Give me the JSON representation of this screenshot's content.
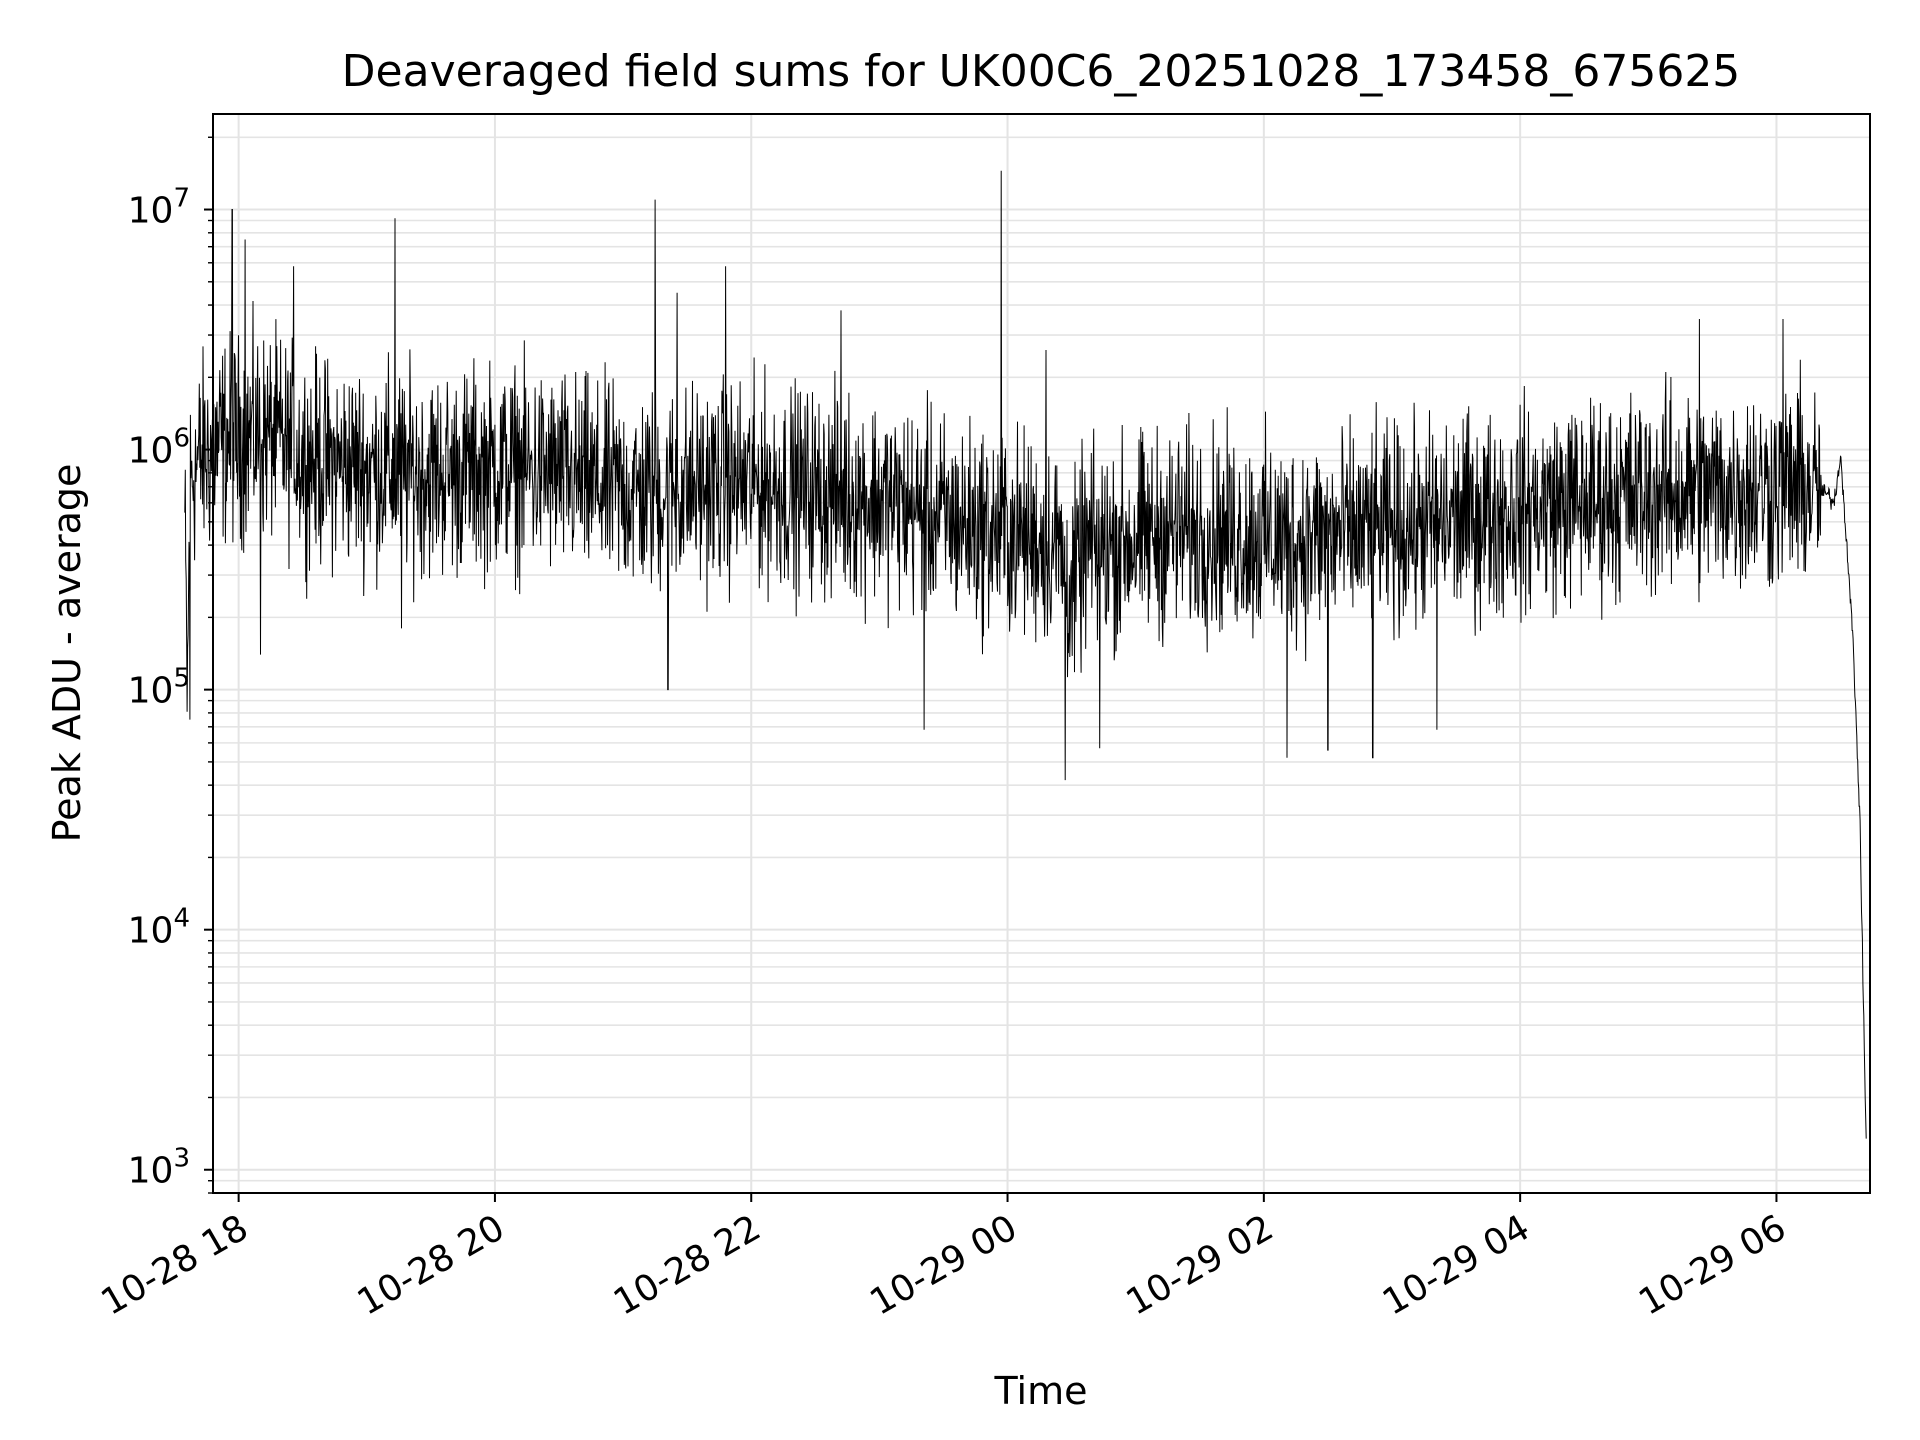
{
  "chart_data": {
    "type": "line",
    "title": "Deaveraged field sums for UK00C6_20251028_173458_675625",
    "xlabel": "Time",
    "ylabel": "Peak ADU - average",
    "yscale": "log",
    "ylim": [
      800,
      25000000
    ],
    "xlim_hours": [
      -0.2,
      12.73
    ],
    "x_ticks": [
      {
        "hours": 0,
        "label": "10-28 18"
      },
      {
        "hours": 2,
        "label": "10-28 20"
      },
      {
        "hours": 4,
        "label": "10-28 22"
      },
      {
        "hours": 6,
        "label": "10-29 00"
      },
      {
        "hours": 8,
        "label": "10-29 02"
      },
      {
        "hours": 10,
        "label": "10-29 04"
      },
      {
        "hours": 12,
        "label": "10-29 06"
      }
    ],
    "y_ticks": [
      {
        "value": 1000,
        "base": "10",
        "exp": "3"
      },
      {
        "value": 10000,
        "base": "10",
        "exp": "4"
      },
      {
        "value": 100000,
        "base": "10",
        "exp": "5"
      },
      {
        "value": 1000000,
        "base": "10",
        "exp": "6"
      },
      {
        "value": 10000000,
        "base": "10",
        "exp": "7"
      }
    ],
    "grid": true,
    "series": [
      {
        "name": "field sums",
        "color": "#000000",
        "x_hours": [
          -0.42,
          -0.4,
          -0.38,
          -0.36,
          -0.34,
          -0.3,
          -0.25,
          -0.2,
          -0.15,
          -0.1,
          -0.05,
          0.0,
          0.1,
          0.2,
          0.3,
          0.4,
          0.5,
          0.6,
          0.7,
          0.8,
          0.9,
          1.0,
          1.2,
          1.4,
          1.6,
          1.8,
          2.0,
          2.2,
          2.4,
          2.6,
          2.8,
          3.0,
          3.2,
          3.4,
          3.6,
          3.8,
          4.0,
          4.2,
          4.4,
          4.6,
          4.8,
          5.0,
          5.2,
          5.4,
          5.6,
          5.8,
          6.0,
          6.2,
          6.4,
          6.5,
          6.6,
          6.8,
          7.0,
          7.2,
          7.4,
          7.6,
          7.8,
          8.0,
          8.2,
          8.4,
          8.6,
          8.8,
          9.0,
          9.2,
          9.4,
          9.6,
          9.8,
          10.0,
          10.2,
          10.4,
          10.6,
          10.8,
          11.0,
          11.2,
          11.4,
          11.6,
          11.8,
          12.0,
          12.1,
          12.2,
          12.3,
          12.4,
          12.45,
          12.5,
          12.55,
          12.6,
          12.65,
          12.7
        ],
        "median": [
          500000,
          90000,
          700000,
          800000,
          850000,
          900000,
          950000,
          1000000,
          1050000,
          1100000,
          1100000,
          1100000,
          1150000,
          1150000,
          1100000,
          1000000,
          950000,
          900000,
          880000,
          870000,
          860000,
          840000,
          820000,
          800000,
          800000,
          820000,
          840000,
          830000,
          800000,
          760000,
          700000,
          680000,
          650000,
          680000,
          700000,
          720000,
          720000,
          700000,
          680000,
          650000,
          640000,
          620000,
          580000,
          530000,
          500000,
          470000,
          450000,
          430000,
          400000,
          250000,
          380000,
          400000,
          420000,
          450000,
          460000,
          450000,
          440000,
          430000,
          420000,
          430000,
          440000,
          450000,
          460000,
          480000,
          500000,
          520000,
          540000,
          560000,
          580000,
          600000,
          620000,
          640000,
          650000,
          660000,
          670000,
          680000,
          690000,
          700000,
          720000,
          700000,
          680000,
          650000,
          600000,
          950000,
          400000,
          150000,
          30000,
          1300
        ],
        "spikes": [
          {
            "hours": -0.05,
            "value": 10000000
          },
          {
            "hours": 0.05,
            "value": 7500000
          },
          {
            "hours": 0.43,
            "value": 5800000
          },
          {
            "hours": 1.22,
            "value": 9200000
          },
          {
            "hours": 3.25,
            "value": 11000000
          },
          {
            "hours": 3.42,
            "value": 4500000
          },
          {
            "hours": 3.8,
            "value": 5800000
          },
          {
            "hours": 4.7,
            "value": 3800000
          },
          {
            "hours": 5.95,
            "value": 14500000
          },
          {
            "hours": 6.3,
            "value": 2600000
          },
          {
            "hours": 11.4,
            "value": 3500000
          },
          {
            "hours": 12.05,
            "value": 3500000
          }
        ],
        "dips": [
          {
            "hours": -0.38,
            "value": 75000
          },
          {
            "hours": 0.17,
            "value": 140000
          },
          {
            "hours": 1.27,
            "value": 180000
          },
          {
            "hours": 3.35,
            "value": 100000
          },
          {
            "hours": 5.35,
            "value": 68000
          },
          {
            "hours": 6.45,
            "value": 42000
          },
          {
            "hours": 6.72,
            "value": 57000
          },
          {
            "hours": 8.18,
            "value": 52000
          },
          {
            "hours": 8.5,
            "value": 56000
          },
          {
            "hours": 8.85,
            "value": 52000
          },
          {
            "hours": 9.35,
            "value": 68000
          }
        ]
      }
    ]
  }
}
